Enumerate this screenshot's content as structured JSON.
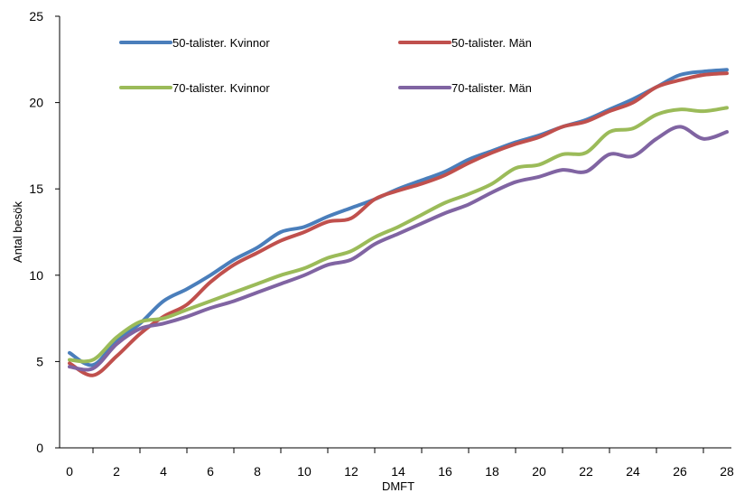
{
  "chart_data": {
    "type": "line",
    "xlabel": "DMFT",
    "ylabel": "Antal besök",
    "xlim": [
      0,
      28
    ],
    "ylim": [
      0,
      25
    ],
    "x_ticks": [
      0,
      2,
      4,
      6,
      8,
      10,
      12,
      14,
      16,
      18,
      20,
      22,
      24,
      26,
      28
    ],
    "y_ticks": [
      0,
      5,
      10,
      15,
      20,
      25
    ],
    "grid": false,
    "legend": "top, two columns",
    "x": [
      0,
      1,
      2,
      3,
      4,
      5,
      6,
      7,
      8,
      9,
      10,
      11,
      12,
      13,
      14,
      15,
      16,
      17,
      18,
      19,
      20,
      21,
      22,
      23,
      24,
      25,
      26,
      27,
      28
    ],
    "series": [
      {
        "name": "50-talister. Kvinnor",
        "color": "#4a7ebb",
        "values": [
          5.5,
          4.8,
          6.2,
          7.2,
          8.5,
          9.2,
          10.0,
          10.9,
          11.6,
          12.5,
          12.8,
          13.4,
          13.9,
          14.4,
          15.0,
          15.5,
          16.0,
          16.7,
          17.2,
          17.7,
          18.1,
          18.6,
          19.0,
          19.6,
          20.2,
          20.9,
          21.6,
          21.8,
          21.9
        ]
      },
      {
        "name": "50-talister. Män",
        "color": "#c0504d",
        "values": [
          4.9,
          4.2,
          5.3,
          6.6,
          7.6,
          8.3,
          9.6,
          10.6,
          11.3,
          12.0,
          12.5,
          13.1,
          13.3,
          14.4,
          14.9,
          15.3,
          15.8,
          16.5,
          17.1,
          17.6,
          18.0,
          18.6,
          18.9,
          19.5,
          20.0,
          20.9,
          21.3,
          21.6,
          21.7
        ]
      },
      {
        "name": "70-talister. Kvinnor",
        "color": "#9bbb59",
        "values": [
          5.1,
          5.1,
          6.4,
          7.3,
          7.5,
          8.0,
          8.5,
          9.0,
          9.5,
          10.0,
          10.4,
          11.0,
          11.4,
          12.2,
          12.8,
          13.5,
          14.2,
          14.7,
          15.3,
          16.2,
          16.4,
          17.0,
          17.1,
          18.3,
          18.5,
          19.3,
          19.6,
          19.5,
          19.7
        ]
      },
      {
        "name": "70-talister. Män",
        "color": "#8064a2",
        "values": [
          4.7,
          4.6,
          6.0,
          6.9,
          7.2,
          7.6,
          8.1,
          8.5,
          9.0,
          9.5,
          10.0,
          10.6,
          10.9,
          11.8,
          12.4,
          13.0,
          13.6,
          14.1,
          14.8,
          15.4,
          15.7,
          16.1,
          16.0,
          17.0,
          16.9,
          17.9,
          18.6,
          17.9,
          18.3
        ]
      }
    ]
  }
}
